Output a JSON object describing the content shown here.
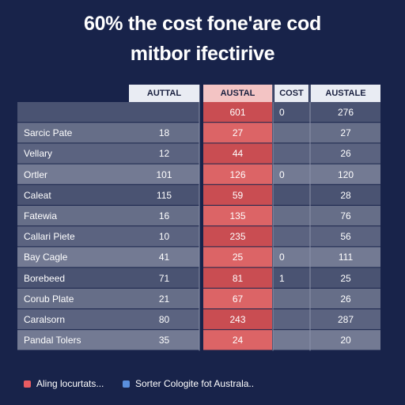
{
  "title_line1": "60% the cost fone'are cod",
  "title_line2": "mitbor ifectirive",
  "colors": {
    "background": "#18234a",
    "highlight_column": "#d9575a",
    "highlight_header": "#f3c4c4",
    "header": "#e9ecf3",
    "legend_red": "#e85c62",
    "legend_blue": "#5a8fde"
  },
  "chart_data": {
    "type": "table",
    "columns": [
      "AUTTAL",
      "AUSTAL",
      "COST",
      "AUSTALE"
    ],
    "highlighted_column": 1,
    "rows": [
      {
        "label": "",
        "values": [
          "",
          "601",
          "0",
          "276"
        ]
      },
      {
        "label": "Sarcic Pate",
        "values": [
          "18",
          "27",
          "",
          "27"
        ]
      },
      {
        "label": "Vellary",
        "values": [
          "12",
          "44",
          "",
          "26"
        ]
      },
      {
        "label": "Ortler",
        "values": [
          "101",
          "126",
          "0",
          "120"
        ]
      },
      {
        "label": "Caleat",
        "values": [
          "115",
          "59",
          "",
          "28"
        ]
      },
      {
        "label": "Fatewia",
        "values": [
          "16",
          "135",
          "",
          "76"
        ]
      },
      {
        "label": "Callari Piete",
        "values": [
          "10",
          "235",
          "",
          "56"
        ]
      },
      {
        "label": "Bay Cagle",
        "values": [
          "41",
          "25",
          "0",
          "111"
        ]
      },
      {
        "label": "Borebeed",
        "values": [
          "71",
          "81",
          "1",
          "25"
        ]
      },
      {
        "label": "Corub Plate",
        "values": [
          "21",
          "67",
          "",
          "26"
        ]
      },
      {
        "label": "Caralsorn",
        "values": [
          "80",
          "243",
          "",
          "287"
        ]
      },
      {
        "label": "Pandal Tolers",
        "values": [
          "35",
          "24",
          "",
          "20"
        ]
      }
    ],
    "legend": [
      "Aling locurtats...",
      "Sorter Cologite fot Australa.."
    ]
  }
}
